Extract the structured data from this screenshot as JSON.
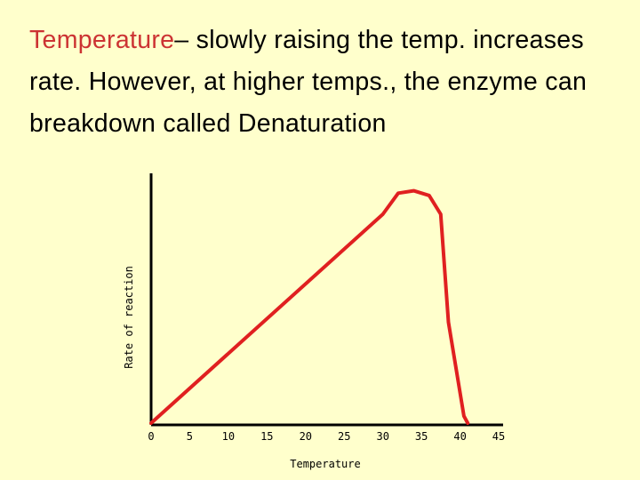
{
  "slide": {
    "heading_keyword": "Temperature",
    "heading_rest": "– slowly raising the temp. increases rate.  However, at higher temps., the enzyme can breakdown called Denaturation"
  },
  "colors": {
    "background": "#ffffcc",
    "accent": "#cc3333",
    "curve": "#e02020",
    "axis": "#000000"
  },
  "chart_data": {
    "type": "line",
    "title": "",
    "xlabel": "Temperature",
    "ylabel": "Rate of reaction",
    "xlim": [
      0,
      45
    ],
    "ylim": [
      0,
      100
    ],
    "xticks": [
      "0",
      "5",
      "10",
      "15",
      "20",
      "25",
      "30",
      "35",
      "40",
      "45"
    ],
    "grid": false,
    "series": [
      {
        "name": "Rate of reaction",
        "x": [
          0,
          30,
          32,
          34,
          36,
          37.5,
          38.5,
          40.5,
          41
        ],
        "y": [
          0,
          89,
          98,
          99,
          97,
          89,
          43,
          3,
          0
        ]
      }
    ]
  }
}
